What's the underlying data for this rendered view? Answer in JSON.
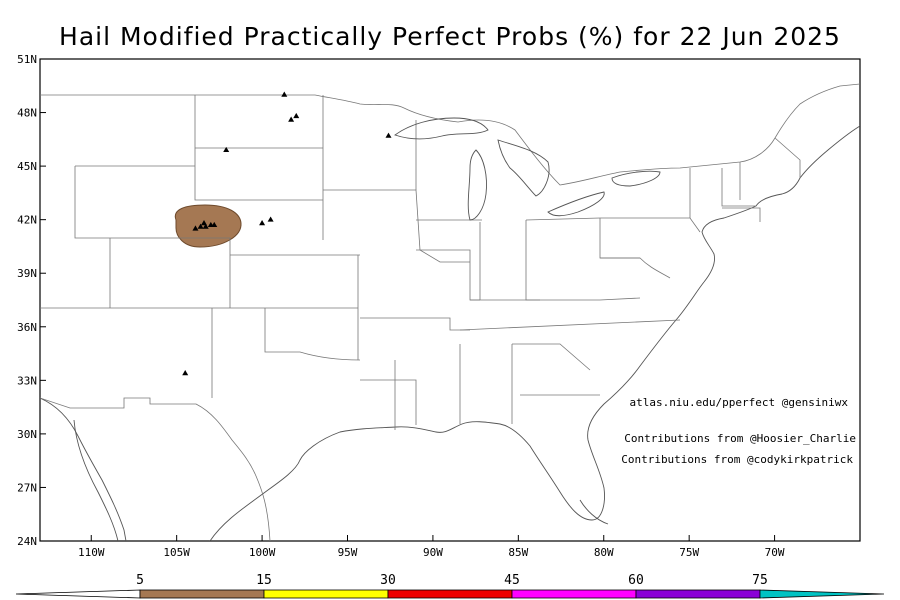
{
  "title": "Hail Modified Practically Perfect Probs (%) for 22 Jun 2025",
  "axes": {
    "lat_labels": [
      "51N",
      "48N",
      "45N",
      "42N",
      "39N",
      "36N",
      "33N",
      "30N",
      "27N",
      "24N"
    ],
    "lat_values": [
      51,
      48,
      45,
      42,
      39,
      36,
      33,
      30,
      27,
      24
    ],
    "lon_labels": [
      "110W",
      "105W",
      "100W",
      "95W",
      "90W",
      "85W",
      "80W",
      "75W",
      "70W"
    ],
    "lon_values": [
      -110,
      -105,
      -100,
      -95,
      -90,
      -85,
      -80,
      -75,
      -70
    ],
    "lat_range": [
      24,
      51
    ],
    "lon_range": [
      -113,
      -65
    ]
  },
  "credits": {
    "site": "atlas.niu.edu/pperfect @gensiniwx",
    "contrib1": "Contributions from @Hoosier_Charlie",
    "contrib2": "Contributions from @codykirkpatrick"
  },
  "colorbar": {
    "labels": [
      "5",
      "15",
      "30",
      "45",
      "60",
      "75"
    ],
    "colors": [
      "#ffffff",
      "#a57853",
      "#ffff00",
      "#ee0000",
      "#ff00ff",
      "#8a00d6",
      "#00c3c3"
    ]
  },
  "probability_area": {
    "level": "5",
    "color": "#a57853",
    "center": [
      -103.2,
      41.6
    ]
  },
  "hail_reports": [
    [
      -98.7,
      49.0
    ],
    [
      -98.3,
      47.6
    ],
    [
      -98.0,
      47.8
    ],
    [
      -102.1,
      45.9
    ],
    [
      -92.6,
      46.7
    ],
    [
      -103.9,
      41.5
    ],
    [
      -103.6,
      41.6
    ],
    [
      -103.3,
      41.6
    ],
    [
      -103.0,
      41.7
    ],
    [
      -102.8,
      41.7
    ],
    [
      -103.4,
      41.8
    ],
    [
      -100.0,
      41.8
    ],
    [
      -99.5,
      42.0
    ],
    [
      -104.5,
      33.4
    ]
  ]
}
